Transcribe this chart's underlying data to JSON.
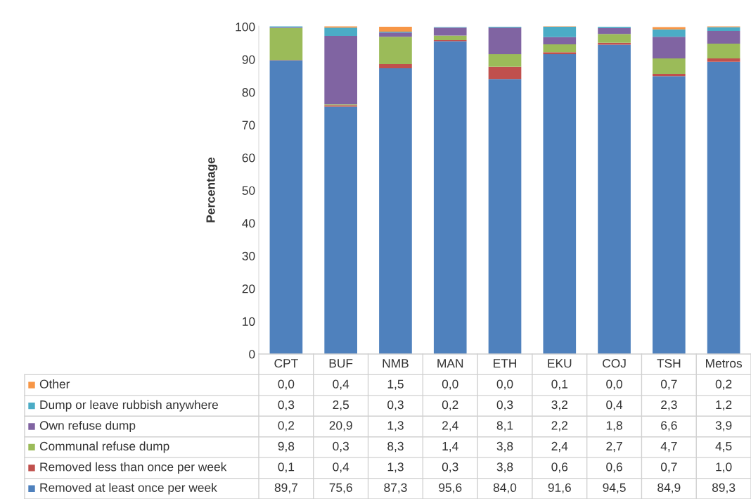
{
  "chart_data": {
    "type": "bar",
    "stacked": true,
    "ylabel": "Percentage",
    "categories": [
      "CPT",
      "BUF",
      "NMB",
      "MAN",
      "ETH",
      "EKU",
      "COJ",
      "TSH",
      "Metros"
    ],
    "series": [
      {
        "name": "Removed at least once per week",
        "color": "#4f81bd",
        "values": [
          89.7,
          75.6,
          87.3,
          95.6,
          84.0,
          91.6,
          94.5,
          84.9,
          89.3
        ],
        "value_labels": [
          "89,7",
          "75,6",
          "87,3",
          "95,6",
          "84,0",
          "91,6",
          "94,5",
          "84,9",
          "89,3"
        ]
      },
      {
        "name": "Removed less than once per week",
        "color": "#c0504d",
        "values": [
          0.1,
          0.4,
          1.3,
          0.3,
          3.8,
          0.6,
          0.6,
          0.7,
          1.0
        ],
        "value_labels": [
          "0,1",
          "0,4",
          "1,3",
          "0,3",
          "3,8",
          "0,6",
          "0,6",
          "0,7",
          "1,0"
        ]
      },
      {
        "name": "Communal refuse dump",
        "color": "#9bbb59",
        "values": [
          9.8,
          0.3,
          8.3,
          1.4,
          3.8,
          2.4,
          2.7,
          4.7,
          4.5
        ],
        "value_labels": [
          "9,8",
          "0,3",
          "8,3",
          "1,4",
          "3,8",
          "2,4",
          "2,7",
          "4,7",
          "4,5"
        ]
      },
      {
        "name": "Own refuse dump",
        "color": "#8064a2",
        "values": [
          0.2,
          20.9,
          1.3,
          2.4,
          8.1,
          2.2,
          1.8,
          6.6,
          3.9
        ],
        "value_labels": [
          "0,2",
          "20,9",
          "1,3",
          "2,4",
          "8,1",
          "2,2",
          "1,8",
          "6,6",
          "3,9"
        ]
      },
      {
        "name": "Dump or leave rubbish anywhere",
        "color": "#4bacc6",
        "values": [
          0.3,
          2.5,
          0.3,
          0.2,
          0.3,
          3.2,
          0.4,
          2.3,
          1.2
        ],
        "value_labels": [
          "0,3",
          "2,5",
          "0,3",
          "0,2",
          "0,3",
          "3,2",
          "0,4",
          "2,3",
          "1,2"
        ]
      },
      {
        "name": "Other",
        "color": "#f79646",
        "values": [
          0.0,
          0.4,
          1.5,
          0.0,
          0.0,
          0.1,
          0.0,
          0.7,
          0.2
        ],
        "value_labels": [
          "0,0",
          "0,4",
          "1,5",
          "0,0",
          "0,0",
          "0,1",
          "0,0",
          "0,7",
          "0,2"
        ]
      }
    ],
    "ylim": [
      0,
      100.2
    ],
    "yticks": [
      0,
      10,
      20,
      30,
      40,
      50,
      60,
      70,
      80,
      90,
      100
    ],
    "tick_labels": "y",
    "grid": false,
    "legend": "bottom"
  }
}
